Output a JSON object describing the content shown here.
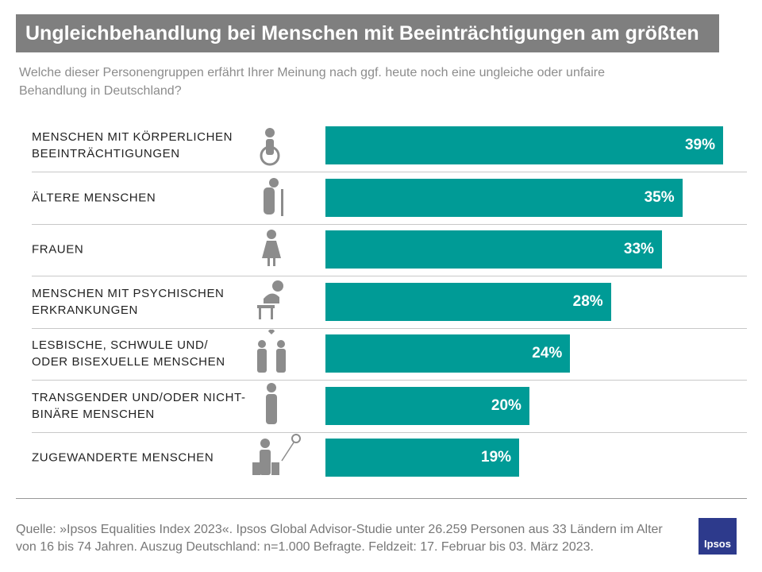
{
  "chart_data": {
    "type": "bar",
    "orientation": "horizontal",
    "title": "Ungleichbehandlung bei Menschen mit Beeinträchtigungen am größten",
    "subtitle": "Welche dieser Personengruppen erfährt Ihrer Meinung nach ggf. heute noch eine ungleiche oder unfaire Behandlung in Deutschland?",
    "categories": [
      "MENSCHEN MIT KÖRPERLICHEN BEEINTRÄCHTIGUNGEN",
      "ÄLTERE MENSCHEN",
      "FRAUEN",
      "MENSCHEN MIT PSYCHISCHEN ERKRANKUNGEN",
      "LESBISCHE, SCHWULE UND/ ODER BISEXUELLE MENSCHEN",
      "TRANSGENDER UND/ODER NICHT-BINÄRE MENSCHEN",
      "ZUGEWANDERTE MENSCHEN"
    ],
    "values": [
      39,
      35,
      33,
      28,
      24,
      20,
      19
    ],
    "value_labels": [
      "39%",
      "35%",
      "33%",
      "28%",
      "24%",
      "20%",
      "19%"
    ],
    "color": "#009b96"
  },
  "footer": {
    "source": "Quelle: »Ipsos Equalities Index 2023«. Ipsos Global Advisor-Studie unter 26.259  Personen aus 33 Ländern im Alter von 16 bis 74 Jahren. Auszug Deutschland: n=1.000 Befragte. Feldzeit: 17. Februar bis 03. März 2023.",
    "logo": "Ipsos"
  }
}
